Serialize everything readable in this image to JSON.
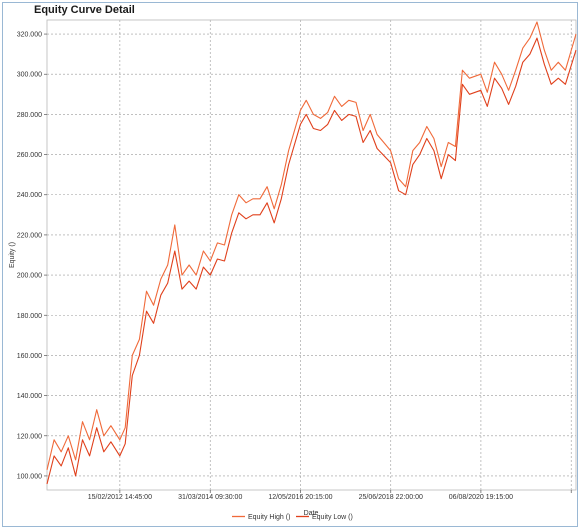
{
  "chart_data": {
    "type": "line",
    "title": "Equity Curve Detail",
    "xlabel": "Date",
    "ylabel": "Equity ()",
    "ylim": [
      93000,
      327000
    ],
    "yticks": [
      100000,
      120000,
      140000,
      160000,
      180000,
      200000,
      220000,
      240000,
      260000,
      280000,
      300000,
      320000
    ],
    "ytick_labels": [
      "100.000",
      "120.000",
      "140.000",
      "160.000",
      "180.000",
      "200.000",
      "220.000",
      "240.000",
      "260.000",
      "280.000",
      "300.000",
      "320.000"
    ],
    "xlim": [
      "2010-06-01",
      "2022-10-31"
    ],
    "xticks": [
      "2012-02-15 14:45",
      "2014-03-31 09:30",
      "2016-05-12 20:15",
      "2018-06-25 22:00",
      "2020-08-06 19:15",
      "2022-09-20 00:00"
    ],
    "xtick_labels": [
      "15/02/2012 14:45:00",
      "31/03/2014 09:30:00",
      "12/05/2016 20:15:00",
      "25/06/2018 22:00:00",
      "06/08/2020 19:15:00",
      ""
    ],
    "grid": true,
    "legend_position": "bottom-center",
    "series": [
      {
        "name": "Equity High ()",
        "color": "#f06a3a",
        "x": [
          "2010-06-01",
          "2010-08-01",
          "2010-10-01",
          "2010-12-01",
          "2011-02-01",
          "2011-04-01",
          "2011-06-01",
          "2011-08-01",
          "2011-10-01",
          "2011-12-01",
          "2012-02-15",
          "2012-04-01",
          "2012-06-01",
          "2012-08-01",
          "2012-10-01",
          "2012-12-01",
          "2013-02-01",
          "2013-04-01",
          "2013-06-01",
          "2013-08-01",
          "2013-10-01",
          "2013-12-01",
          "2014-02-01",
          "2014-04-01",
          "2014-06-01",
          "2014-08-01",
          "2014-10-01",
          "2014-12-01",
          "2015-02-01",
          "2015-04-01",
          "2015-06-01",
          "2015-08-01",
          "2015-10-01",
          "2015-12-01",
          "2016-02-01",
          "2016-05-12",
          "2016-07-01",
          "2016-09-01",
          "2016-11-01",
          "2017-01-01",
          "2017-03-01",
          "2017-05-01",
          "2017-07-01",
          "2017-09-01",
          "2017-11-01",
          "2018-01-01",
          "2018-03-01",
          "2018-06-25",
          "2018-09-01",
          "2018-11-01",
          "2019-01-01",
          "2019-03-01",
          "2019-05-01",
          "2019-07-01",
          "2019-09-01",
          "2019-11-01",
          "2020-01-01",
          "2020-03-01",
          "2020-05-01",
          "2020-08-06",
          "2020-10-01",
          "2020-12-01",
          "2021-02-01",
          "2021-04-01",
          "2021-06-01",
          "2021-08-01",
          "2021-10-01",
          "2021-12-01",
          "2022-02-01",
          "2022-04-01",
          "2022-06-01",
          "2022-08-01",
          "2022-10-31"
        ],
        "values": [
          103000,
          118000,
          112000,
          120000,
          108000,
          127000,
          118000,
          133000,
          120000,
          125000,
          118000,
          124000,
          160000,
          168000,
          192000,
          185000,
          198000,
          205000,
          225000,
          200000,
          205000,
          200000,
          212000,
          207000,
          216000,
          215000,
          230000,
          240000,
          236000,
          238000,
          238000,
          244000,
          233000,
          245000,
          262000,
          282000,
          287000,
          280000,
          278000,
          281000,
          289000,
          284000,
          287000,
          286000,
          272000,
          280000,
          270000,
          262000,
          248000,
          244000,
          262000,
          266000,
          274000,
          268000,
          254000,
          266000,
          264000,
          302000,
          298000,
          300000,
          291000,
          306000,
          300000,
          292000,
          302000,
          313000,
          318000,
          326000,
          312000,
          302000,
          306000,
          302000,
          320000
        ]
      },
      {
        "name": "Equity Low ()",
        "color": "#e0401c",
        "x": [
          "2010-06-01",
          "2010-08-01",
          "2010-10-01",
          "2010-12-01",
          "2011-02-01",
          "2011-04-01",
          "2011-06-01",
          "2011-08-01",
          "2011-10-01",
          "2011-12-01",
          "2012-02-15",
          "2012-04-01",
          "2012-06-01",
          "2012-08-01",
          "2012-10-01",
          "2012-12-01",
          "2013-02-01",
          "2013-04-01",
          "2013-06-01",
          "2013-08-01",
          "2013-10-01",
          "2013-12-01",
          "2014-02-01",
          "2014-04-01",
          "2014-06-01",
          "2014-08-01",
          "2014-10-01",
          "2014-12-01",
          "2015-02-01",
          "2015-04-01",
          "2015-06-01",
          "2015-08-01",
          "2015-10-01",
          "2015-12-01",
          "2016-02-01",
          "2016-05-12",
          "2016-07-01",
          "2016-09-01",
          "2016-11-01",
          "2017-01-01",
          "2017-03-01",
          "2017-05-01",
          "2017-07-01",
          "2017-09-01",
          "2017-11-01",
          "2018-01-01",
          "2018-03-01",
          "2018-06-25",
          "2018-09-01",
          "2018-11-01",
          "2019-01-01",
          "2019-03-01",
          "2019-05-01",
          "2019-07-01",
          "2019-09-01",
          "2019-11-01",
          "2020-01-01",
          "2020-03-01",
          "2020-05-01",
          "2020-08-06",
          "2020-10-01",
          "2020-12-01",
          "2021-02-01",
          "2021-04-01",
          "2021-06-01",
          "2021-08-01",
          "2021-10-01",
          "2021-12-01",
          "2022-02-01",
          "2022-04-01",
          "2022-06-01",
          "2022-08-01",
          "2022-10-31"
        ],
        "values": [
          96000,
          110000,
          105000,
          114000,
          100000,
          118000,
          110000,
          124000,
          112000,
          117000,
          110000,
          116000,
          150000,
          160000,
          182000,
          176000,
          190000,
          196000,
          212000,
          193000,
          197000,
          193000,
          204000,
          200000,
          208000,
          207000,
          221000,
          231000,
          228000,
          230000,
          230000,
          236000,
          226000,
          238000,
          255000,
          275000,
          280000,
          273000,
          272000,
          275000,
          282000,
          277000,
          280000,
          279000,
          266000,
          272000,
          263000,
          256000,
          242000,
          240000,
          255000,
          260000,
          268000,
          262000,
          248000,
          260000,
          257000,
          295000,
          290000,
          292000,
          284000,
          298000,
          293000,
          285000,
          294000,
          306000,
          310000,
          318000,
          305000,
          295000,
          298000,
          295000,
          312000
        ]
      }
    ]
  }
}
